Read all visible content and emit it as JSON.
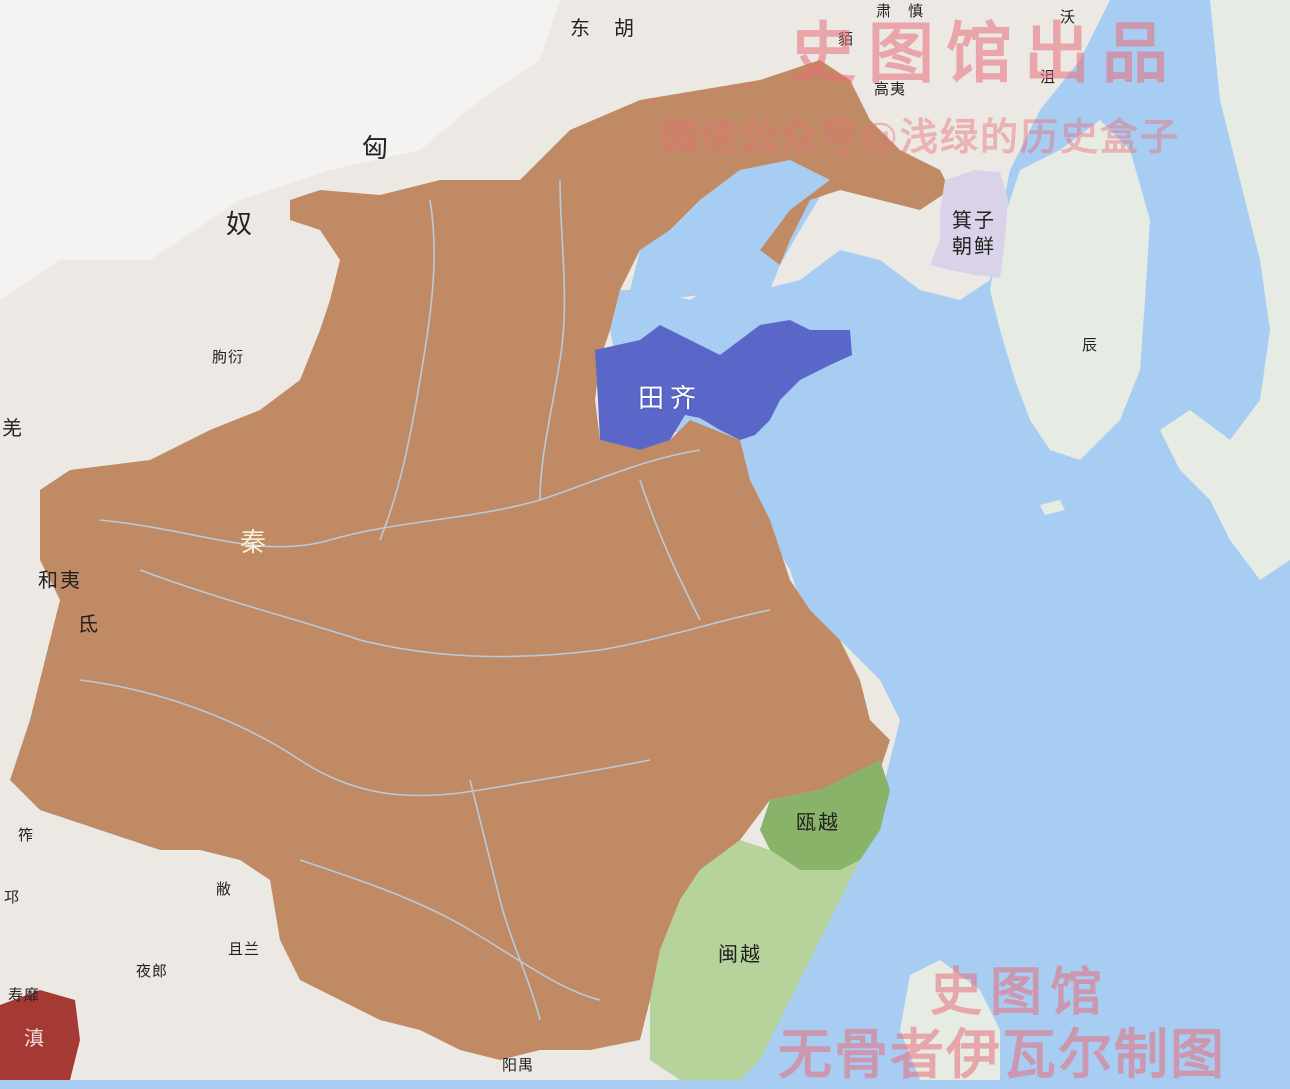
{
  "map": {
    "colors": {
      "sea": "#a8cdf3",
      "land": "#ece9e4",
      "qin": "#c08a64",
      "qi": "#5a66c8",
      "jizi_joseon": "#d9d2e8",
      "ouyue": "#8ab36a",
      "minyue": "#b5d39a",
      "dian": "#a53a34",
      "river": "#b9d6ee",
      "watermark": "#e86e78"
    },
    "labels": {
      "donghu": "东　胡",
      "sushen": "肃　慎",
      "wo": "沃",
      "ju": "沮",
      "mo": "貊",
      "gaoyi": "高夷",
      "xiongnu_xiong": "匈",
      "xiongnu_nu": "奴",
      "jizi_joseon_line1": "箕子",
      "jizi_joseon_line2": "朝鲜",
      "chen": "辰",
      "qi": "田齐",
      "qin": "秦",
      "quyan": "朐衍",
      "qiang": "羌",
      "heyi": "和夷",
      "di": "氐",
      "zuo": "筰",
      "qiong": "邛",
      "bi": "敝",
      "qielan": "且兰",
      "yelang": "夜郎",
      "shoumi": "寿靡",
      "dian": "滇",
      "ouyue": "瓯越",
      "minyue": "闽越",
      "panyu": "阳禺"
    },
    "watermarks": {
      "top_title": "史图馆出品",
      "top_subtitle": "微信公众号@浅绿的历史盒子",
      "bottom_title": "史图馆",
      "bottom_subtitle": "无骨者伊瓦尔制图"
    }
  }
}
